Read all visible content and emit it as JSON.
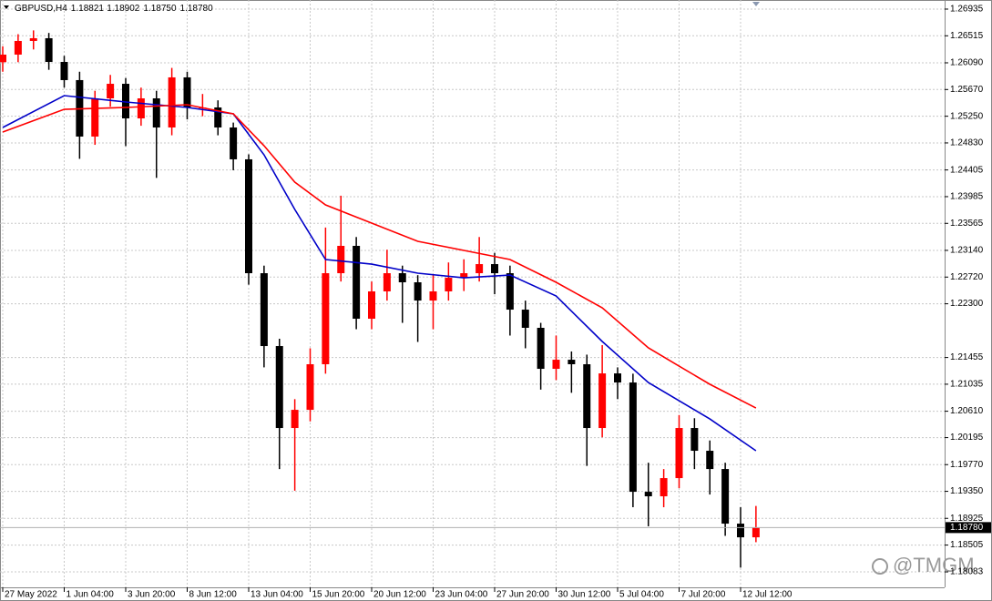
{
  "chart_data": {
    "type": "candlestick",
    "title": "GBPUSD,H4",
    "header_ohlc": [
      {
        "value": 1.18821,
        "label": "1.18821"
      },
      {
        "value": 1.18902,
        "label": "1.18902"
      },
      {
        "value": 1.1875,
        "label": "1.18750"
      },
      {
        "value": 1.1878,
        "label": "1.18780"
      }
    ],
    "categories": [
      "27 May 2022",
      null,
      null,
      null,
      "1 Jun 04:00",
      null,
      null,
      null,
      "3 Jun 20:00",
      null,
      null,
      null,
      "8 Jun 12:00",
      null,
      null,
      null,
      "13 Jun 04:00",
      null,
      null,
      null,
      "15 Jun 20:00",
      null,
      null,
      null,
      "20 Jun 12:00",
      null,
      null,
      null,
      "23 Jun 04:00",
      null,
      null,
      null,
      "27 Jun 20:00",
      null,
      null,
      null,
      "30 Jun 12:00",
      null,
      null,
      null,
      "5 Jul 04:00",
      null,
      null,
      null,
      "7 Jul 20:00",
      null,
      null,
      null,
      "12 Jul 12:00",
      null
    ],
    "open": [
      1.261,
      1.26219,
      1.26434,
      1.26477,
      1.26104,
      1.25818,
      1.2493,
      1.25531,
      1.2576,
      1.25216,
      1.25531,
      1.25073,
      1.25861,
      1.25388,
      1.25388,
      1.25073,
      1.24572,
      1.22781,
      1.21635,
      1.20346,
      1.20632,
      1.21349,
      1.22781,
      1.23211,
      1.22065,
      1.22495,
      1.22781,
      1.22638,
      1.22351,
      1.22495,
      1.22709,
      1.22781,
      1.22924,
      1.22781,
      1.22208,
      1.21922,
      1.21277,
      1.2142,
      1.21349,
      1.20346,
      1.21205,
      1.21062,
      1.19343,
      1.19272,
      1.19558,
      1.20346,
      1.19988,
      1.19701,
      1.18842,
      1.18627
    ],
    "high": [
      1.2635,
      1.2654,
      1.266,
      1.2656,
      1.262,
      1.2595,
      1.2565,
      1.259,
      1.2585,
      1.257,
      1.2565,
      1.2601,
      1.2595,
      1.256,
      1.255,
      1.2515,
      1.2465,
      1.229,
      1.2175,
      1.208,
      1.216,
      1.235,
      1.24,
      1.2335,
      1.2265,
      1.2315,
      1.229,
      1.2275,
      1.2275,
      1.2295,
      1.23,
      1.2335,
      1.231,
      1.229,
      1.2235,
      1.22,
      1.218,
      1.2155,
      1.215,
      1.2165,
      1.213,
      1.212,
      1.198,
      1.197,
      1.2055,
      1.205,
      1.2015,
      1.198,
      1.191,
      1.1912
    ],
    "low": [
      1.2595,
      1.261,
      1.263,
      1.2598,
      1.257,
      1.2458,
      1.248,
      1.254,
      1.2478,
      1.251,
      1.2428,
      1.2495,
      1.252,
      1.2525,
      1.2495,
      1.244,
      1.226,
      1.213,
      1.197,
      1.1936,
      1.2045,
      1.212,
      1.2265,
      1.219,
      1.219,
      1.2235,
      1.22,
      1.217,
      1.219,
      1.2235,
      1.225,
      1.2265,
      1.2245,
      1.218,
      1.216,
      1.2095,
      1.211,
      1.209,
      1.1975,
      1.202,
      1.208,
      1.191,
      1.188,
      1.191,
      1.194,
      1.197,
      1.193,
      1.1865,
      1.1815,
      1.1855
    ],
    "close": [
      1.26219,
      1.26434,
      1.26477,
      1.26104,
      1.25818,
      1.2493,
      1.25531,
      1.2576,
      1.25216,
      1.25531,
      1.25073,
      1.25861,
      1.25388,
      1.25388,
      1.25073,
      1.24572,
      1.22781,
      1.21635,
      1.20346,
      1.20632,
      1.21349,
      1.22781,
      1.23211,
      1.22065,
      1.22495,
      1.22781,
      1.22638,
      1.22351,
      1.22495,
      1.22709,
      1.22781,
      1.22924,
      1.22781,
      1.22208,
      1.21922,
      1.21277,
      1.2142,
      1.21349,
      1.20346,
      1.21205,
      1.21062,
      1.19343,
      1.19272,
      1.19558,
      1.20346,
      1.19988,
      1.19701,
      1.18842,
      1.18627,
      1.1878
    ],
    "up_color": "#ff0000",
    "down_color": "#000000",
    "lines": [
      {
        "color": "#0000c8",
        "x": [
          0,
          4,
          8,
          12,
          15,
          17,
          19,
          21,
          24,
          27,
          30,
          33,
          36,
          39,
          42,
          44,
          46,
          49
        ],
        "values": [
          1.25073,
          1.25574,
          1.25474,
          1.25388,
          1.25288,
          1.24643,
          1.23784,
          1.22996,
          1.22924,
          1.22781,
          1.22709,
          1.22752,
          1.22423,
          1.21707,
          1.21062,
          1.20776,
          1.20489,
          1.19988
        ]
      },
      {
        "color": "#ff0000",
        "x": [
          0,
          4,
          8,
          12,
          15,
          17,
          19,
          21,
          24,
          27,
          30,
          33,
          36,
          39,
          42,
          44,
          46,
          49
        ],
        "values": [
          1.25001,
          1.25359,
          1.25388,
          1.25431,
          1.25288,
          1.24786,
          1.24213,
          1.23855,
          1.23569,
          1.23282,
          1.23139,
          1.22996,
          1.22638,
          1.22237,
          1.21607,
          1.2132,
          1.21034,
          1.20661
        ]
      }
    ],
    "last_price": {
      "value": 1.1878,
      "label": "1.18780"
    },
    "ylim": [
      1.1784,
      1.27078
    ],
    "yticks": [
      {
        "value": 1.26935,
        "label": "1.26935"
      },
      {
        "value": 1.26515,
        "label": "1.26515"
      },
      {
        "value": 1.2609,
        "label": "1.26090"
      },
      {
        "value": 1.2567,
        "label": "1.25670"
      },
      {
        "value": 1.2525,
        "label": "1.25250"
      },
      {
        "value": 1.2483,
        "label": "1.24830"
      },
      {
        "value": 1.24405,
        "label": "1.24405"
      },
      {
        "value": 1.23985,
        "label": "1.23985"
      },
      {
        "value": 1.23565,
        "label": "1.23565"
      },
      {
        "value": 1.2314,
        "label": "1.23140"
      },
      {
        "value": 1.2272,
        "label": "1.22720"
      },
      {
        "value": 1.223,
        "label": "1.22300"
      },
      {
        "value": 1.21455,
        "label": "1.21455"
      },
      {
        "value": 1.21035,
        "label": "1.21035"
      },
      {
        "value": 1.2061,
        "label": "1.20610"
      },
      {
        "value": 1.20195,
        "label": "1.20195"
      },
      {
        "value": 1.1977,
        "label": "1.19770"
      },
      {
        "value": 1.1935,
        "label": "1.19350"
      },
      {
        "value": 1.18925,
        "label": "1.18925"
      },
      {
        "value": 1.18505,
        "label": "1.18505"
      },
      {
        "value": 1.18083,
        "label": "1.18083"
      }
    ],
    "grid": true,
    "watermark": "@TMGM"
  }
}
